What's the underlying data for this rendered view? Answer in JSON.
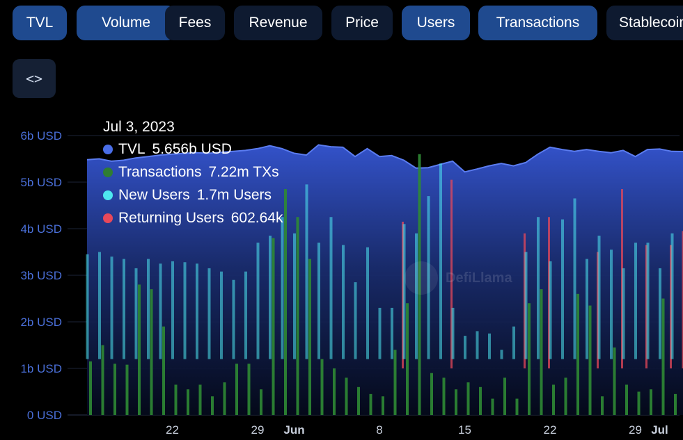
{
  "tabs": [
    {
      "label": "TVL",
      "active": true
    },
    {
      "label": "Volume",
      "active": true
    },
    {
      "label": "Fees",
      "active": false
    },
    {
      "label": "Revenue",
      "active": false
    },
    {
      "label": "Price",
      "active": false
    },
    {
      "label": "Users",
      "active": true
    },
    {
      "label": "Transactions",
      "active": true
    },
    {
      "label": "Stablecoins",
      "active": false
    }
  ],
  "embed_button": {
    "icon": "code-icon",
    "glyph": "<>"
  },
  "watermark": "DefiLlama",
  "tooltip": {
    "date": "Jul 3, 2023",
    "rows": [
      {
        "name": "TVL",
        "value": "5.656b USD",
        "color": "#4a6ee8"
      },
      {
        "name": "Transactions",
        "value": "7.22m TXs",
        "color": "#2f7d32"
      },
      {
        "name": "New Users",
        "value": "1.7m Users",
        "color": "#4ee8f0"
      },
      {
        "name": "Returning Users",
        "value": "602.64k",
        "color": "#e8485a"
      }
    ]
  },
  "chart_data": {
    "type": "area",
    "y_axis": {
      "ticks": [
        "0 USD",
        "1b USD",
        "2b USD",
        "3b USD",
        "4b USD",
        "5b USD",
        "6b USD"
      ],
      "range": [
        0,
        6000000000
      ],
      "unit": "USD"
    },
    "x_axis": {
      "ticks": [
        {
          "label": "22",
          "date": "2023-05-22"
        },
        {
          "label": "29",
          "date": "2023-05-29"
        },
        {
          "label": "Jun",
          "date": "2023-06-01",
          "bold": true
        },
        {
          "label": "8",
          "date": "2023-06-08"
        },
        {
          "label": "15",
          "date": "2023-06-15"
        },
        {
          "label": "22",
          "date": "2023-06-22"
        },
        {
          "label": "29",
          "date": "2023-06-29"
        },
        {
          "label": "Jul",
          "date": "2023-07-01",
          "bold": true
        }
      ],
      "range": [
        "2023-05-15",
        "2023-07-03"
      ]
    },
    "grid": true,
    "series": [
      {
        "name": "TVL",
        "type": "area",
        "color": "#4a6ee8",
        "points": [
          [
            "2023-05-15",
            5.48
          ],
          [
            "2023-05-16",
            5.5
          ],
          [
            "2023-05-17",
            5.45
          ],
          [
            "2023-05-18",
            5.47
          ],
          [
            "2023-05-19",
            5.52
          ],
          [
            "2023-05-20",
            5.55
          ],
          [
            "2023-05-21",
            5.58
          ],
          [
            "2023-05-22",
            5.6
          ],
          [
            "2023-05-23",
            5.62
          ],
          [
            "2023-05-24",
            5.63
          ],
          [
            "2023-05-25",
            5.62
          ],
          [
            "2023-05-26",
            5.64
          ],
          [
            "2023-05-27",
            5.66
          ],
          [
            "2023-05-28",
            5.68
          ],
          [
            "2023-05-29",
            5.72
          ],
          [
            "2023-05-30",
            5.78
          ],
          [
            "2023-05-31",
            5.72
          ],
          [
            "2023-06-01",
            5.62
          ],
          [
            "2023-06-02",
            5.58
          ],
          [
            "2023-06-03",
            5.8
          ],
          [
            "2023-06-04",
            5.76
          ],
          [
            "2023-06-05",
            5.75
          ],
          [
            "2023-06-06",
            5.55
          ],
          [
            "2023-06-07",
            5.72
          ],
          [
            "2023-06-08",
            5.55
          ],
          [
            "2023-06-09",
            5.57
          ],
          [
            "2023-06-10",
            5.47
          ],
          [
            "2023-06-11",
            5.3
          ],
          [
            "2023-06-12",
            5.31
          ],
          [
            "2023-06-13",
            5.38
          ],
          [
            "2023-06-14",
            5.45
          ],
          [
            "2023-06-15",
            5.22
          ],
          [
            "2023-06-16",
            5.28
          ],
          [
            "2023-06-17",
            5.35
          ],
          [
            "2023-06-18",
            5.4
          ],
          [
            "2023-06-19",
            5.35
          ],
          [
            "2023-06-20",
            5.42
          ],
          [
            "2023-06-21",
            5.6
          ],
          [
            "2023-06-22",
            5.75
          ],
          [
            "2023-06-23",
            5.7
          ],
          [
            "2023-06-24",
            5.66
          ],
          [
            "2023-06-25",
            5.7
          ],
          [
            "2023-06-26",
            5.66
          ],
          [
            "2023-06-27",
            5.63
          ],
          [
            "2023-06-28",
            5.68
          ],
          [
            "2023-06-29",
            5.55
          ],
          [
            "2023-06-30",
            5.7
          ],
          [
            "2023-07-01",
            5.71
          ],
          [
            "2023-07-02",
            5.66
          ],
          [
            "2023-07-03",
            5.656
          ]
        ]
      },
      {
        "name": "New Users",
        "type": "bar",
        "color": "#4ee8f0",
        "points": [
          [
            "2023-05-15",
            3.45
          ],
          [
            "2023-05-16",
            3.5
          ],
          [
            "2023-05-17",
            3.4
          ],
          [
            "2023-05-18",
            3.35
          ],
          [
            "2023-05-19",
            3.15
          ],
          [
            "2023-05-20",
            3.35
          ],
          [
            "2023-05-21",
            3.25
          ],
          [
            "2023-05-22",
            3.3
          ],
          [
            "2023-05-23",
            3.28
          ],
          [
            "2023-05-24",
            3.25
          ],
          [
            "2023-05-25",
            3.15
          ],
          [
            "2023-05-26",
            3.08
          ],
          [
            "2023-05-27",
            2.9
          ],
          [
            "2023-05-28",
            3.08
          ],
          [
            "2023-05-29",
            3.7
          ],
          [
            "2023-05-30",
            3.85
          ],
          [
            "2023-05-31",
            4.25
          ],
          [
            "2023-06-01",
            3.9
          ],
          [
            "2023-06-02",
            4.95
          ],
          [
            "2023-06-03",
            3.7
          ],
          [
            "2023-06-04",
            4.25
          ],
          [
            "2023-06-05",
            3.65
          ],
          [
            "2023-06-06",
            2.85
          ],
          [
            "2023-06-07",
            3.6
          ],
          [
            "2023-06-08",
            2.3
          ],
          [
            "2023-06-09",
            2.3
          ],
          [
            "2023-06-10",
            4.1
          ],
          [
            "2023-06-11",
            3.9
          ],
          [
            "2023-06-12",
            4.7
          ],
          [
            "2023-06-13",
            5.4
          ],
          [
            "2023-06-14",
            2.3
          ],
          [
            "2023-06-15",
            1.7
          ],
          [
            "2023-06-16",
            1.8
          ],
          [
            "2023-06-17",
            1.75
          ],
          [
            "2023-06-18",
            1.4
          ],
          [
            "2023-06-19",
            1.9
          ],
          [
            "2023-06-20",
            3.5
          ],
          [
            "2023-06-21",
            4.25
          ],
          [
            "2023-06-22",
            3.3
          ],
          [
            "2023-06-23",
            4.2
          ],
          [
            "2023-06-24",
            4.65
          ],
          [
            "2023-06-25",
            3.35
          ],
          [
            "2023-06-26",
            3.85
          ],
          [
            "2023-06-27",
            3.55
          ],
          [
            "2023-06-28",
            3.15
          ],
          [
            "2023-06-29",
            3.7
          ],
          [
            "2023-06-30",
            3.7
          ],
          [
            "2023-07-01",
            3.15
          ],
          [
            "2023-07-02",
            3.9
          ],
          [
            "2023-07-03",
            3.25
          ]
        ]
      },
      {
        "name": "Returning Users",
        "type": "bar",
        "color": "#e8485a",
        "points": [
          [
            "2023-06-10",
            4.15
          ],
          [
            "2023-06-14",
            5.05
          ],
          [
            "2023-06-20",
            3.9
          ],
          [
            "2023-06-22",
            4.25
          ],
          [
            "2023-06-26",
            3.5
          ],
          [
            "2023-06-28",
            4.85
          ],
          [
            "2023-06-30",
            3.65
          ],
          [
            "2023-07-02",
            3.65
          ],
          [
            "2023-07-03",
            3.95
          ]
        ]
      },
      {
        "name": "Transactions",
        "type": "bar",
        "color": "#2f7d32",
        "points": [
          [
            "2023-05-15",
            1.15
          ],
          [
            "2023-05-16",
            1.5
          ],
          [
            "2023-05-17",
            1.1
          ],
          [
            "2023-05-18",
            1.08
          ],
          [
            "2023-05-19",
            2.8
          ],
          [
            "2023-05-20",
            2.7
          ],
          [
            "2023-05-21",
            1.9
          ],
          [
            "2023-05-22",
            0.65
          ],
          [
            "2023-05-23",
            0.55
          ],
          [
            "2023-05-24",
            0.65
          ],
          [
            "2023-05-25",
            0.4
          ],
          [
            "2023-05-26",
            0.7
          ],
          [
            "2023-05-27",
            1.1
          ],
          [
            "2023-05-28",
            1.1
          ],
          [
            "2023-05-29",
            0.55
          ],
          [
            "2023-05-30",
            3.8
          ],
          [
            "2023-05-31",
            4.85
          ],
          [
            "2023-06-01",
            4.25
          ],
          [
            "2023-06-02",
            3.35
          ],
          [
            "2023-06-03",
            1.2
          ],
          [
            "2023-06-04",
            1.0
          ],
          [
            "2023-06-05",
            0.8
          ],
          [
            "2023-06-06",
            0.6
          ],
          [
            "2023-06-07",
            0.45
          ],
          [
            "2023-06-08",
            0.4
          ],
          [
            "2023-06-09",
            1.4
          ],
          [
            "2023-06-10",
            2.4
          ],
          [
            "2023-06-11",
            5.6
          ],
          [
            "2023-06-12",
            0.9
          ],
          [
            "2023-06-13",
            0.8
          ],
          [
            "2023-06-14",
            0.55
          ],
          [
            "2023-06-15",
            0.7
          ],
          [
            "2023-06-16",
            0.6
          ],
          [
            "2023-06-17",
            0.35
          ],
          [
            "2023-06-18",
            0.8
          ],
          [
            "2023-06-19",
            0.35
          ],
          [
            "2023-06-20",
            2.4
          ],
          [
            "2023-06-21",
            2.7
          ],
          [
            "2023-06-22",
            0.65
          ],
          [
            "2023-06-23",
            0.8
          ],
          [
            "2023-06-24",
            2.6
          ],
          [
            "2023-06-25",
            2.35
          ],
          [
            "2023-06-26",
            0.4
          ],
          [
            "2023-06-27",
            1.45
          ],
          [
            "2023-06-28",
            0.65
          ],
          [
            "2023-06-29",
            0.5
          ],
          [
            "2023-06-30",
            0.55
          ],
          [
            "2023-07-01",
            2.5
          ],
          [
            "2023-07-02",
            0.45
          ],
          [
            "2023-07-03",
            1.2
          ]
        ]
      }
    ],
    "value_scale": "billions of USD on left axis"
  }
}
